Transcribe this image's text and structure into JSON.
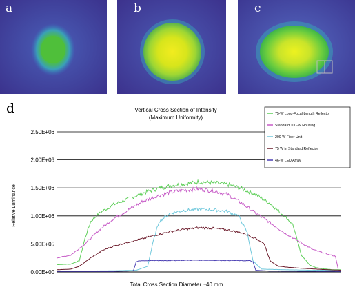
{
  "panels": [
    {
      "letter": "a"
    },
    {
      "letter": "b"
    },
    {
      "letter": "c"
    }
  ],
  "panel_d_letter": "d",
  "chart_data": {
    "type": "line",
    "title": "Vertical Cross Section of Intensity",
    "subtitle": "(Maximum Uniformity)",
    "xlabel": "Total Cross Section Diameter ~40 mm",
    "ylabel": "Relative Luminance",
    "ylim": [
      0,
      2500000
    ],
    "yticks": [
      0,
      500000,
      1000000,
      1500000,
      2000000,
      2500000
    ],
    "ytick_labels": [
      "0.00E+00",
      "5.00E+05",
      "1.00E+06",
      "1.50E+06",
      "2.00E+06",
      "2.50E+06"
    ],
    "xlim": [
      0,
      100
    ],
    "grid": "horizontal",
    "legend_position": "top-right",
    "series": [
      {
        "name": "75-W Long-Focal-Length Reflector",
        "color": "#5fcf5a",
        "points": [
          [
            0,
            130000
          ],
          [
            5,
            140000
          ],
          [
            8,
            200000
          ],
          [
            10,
            600000
          ],
          [
            12,
            900000
          ],
          [
            15,
            1050000
          ],
          [
            20,
            1200000
          ],
          [
            25,
            1300000
          ],
          [
            30,
            1400000
          ],
          [
            35,
            1480000
          ],
          [
            40,
            1540000
          ],
          [
            45,
            1570000
          ],
          [
            50,
            1610000
          ],
          [
            55,
            1590000
          ],
          [
            60,
            1560000
          ],
          [
            65,
            1490000
          ],
          [
            70,
            1380000
          ],
          [
            75,
            1220000
          ],
          [
            80,
            1000000
          ],
          [
            83,
            850000
          ],
          [
            86,
            300000
          ],
          [
            89,
            120000
          ],
          [
            91,
            80000
          ],
          [
            93,
            60000
          ],
          [
            95,
            50000
          ],
          [
            97,
            40000
          ],
          [
            100,
            40000
          ]
        ]
      },
      {
        "name": "Standard 100-W Housing",
        "color": "#c75bc7",
        "points": [
          [
            0,
            250000
          ],
          [
            5,
            300000
          ],
          [
            10,
            500000
          ],
          [
            15,
            750000
          ],
          [
            20,
            950000
          ],
          [
            25,
            1100000
          ],
          [
            30,
            1250000
          ],
          [
            35,
            1350000
          ],
          [
            40,
            1420000
          ],
          [
            45,
            1460000
          ],
          [
            50,
            1480000
          ],
          [
            55,
            1450000
          ],
          [
            60,
            1380000
          ],
          [
            65,
            1230000
          ],
          [
            70,
            1050000
          ],
          [
            75,
            880000
          ],
          [
            80,
            700000
          ],
          [
            85,
            550000
          ],
          [
            90,
            400000
          ],
          [
            95,
            320000
          ],
          [
            98,
            280000
          ],
          [
            99,
            30000
          ],
          [
            100,
            20000
          ]
        ]
      },
      {
        "name": "200-W Fiber Unit",
        "color": "#6fc8dc",
        "points": [
          [
            0,
            15000
          ],
          [
            18,
            20000
          ],
          [
            28,
            30000
          ],
          [
            32,
            100000
          ],
          [
            34,
            550000
          ],
          [
            36,
            900000
          ],
          [
            40,
            1050000
          ],
          [
            45,
            1100000
          ],
          [
            50,
            1120000
          ],
          [
            55,
            1110000
          ],
          [
            60,
            1080000
          ],
          [
            64,
            1000000
          ],
          [
            67,
            700000
          ],
          [
            69,
            200000
          ],
          [
            72,
            50000
          ],
          [
            80,
            40000
          ],
          [
            90,
            30000
          ],
          [
            100,
            30000
          ]
        ]
      },
      {
        "name": "75 W in Standard Reflector",
        "color": "#6b1a2a",
        "points": [
          [
            0,
            40000
          ],
          [
            5,
            50000
          ],
          [
            8,
            100000
          ],
          [
            12,
            250000
          ],
          [
            16,
            380000
          ],
          [
            20,
            460000
          ],
          [
            25,
            530000
          ],
          [
            30,
            590000
          ],
          [
            35,
            660000
          ],
          [
            40,
            720000
          ],
          [
            45,
            760000
          ],
          [
            50,
            790000
          ],
          [
            55,
            780000
          ],
          [
            60,
            750000
          ],
          [
            65,
            700000
          ],
          [
            70,
            600000
          ],
          [
            73,
            500000
          ],
          [
            75,
            200000
          ],
          [
            78,
            100000
          ],
          [
            82,
            80000
          ],
          [
            88,
            60000
          ],
          [
            95,
            40000
          ],
          [
            100,
            30000
          ]
        ]
      },
      {
        "name": "46-W LED Array",
        "color": "#4a3fb3",
        "points": [
          [
            0,
            10000
          ],
          [
            20,
            10000
          ],
          [
            27,
            20000
          ],
          [
            28,
            180000
          ],
          [
            29,
            200000
          ],
          [
            40,
            205000
          ],
          [
            50,
            210000
          ],
          [
            60,
            205000
          ],
          [
            68,
            200000
          ],
          [
            69,
            180000
          ],
          [
            70,
            30000
          ],
          [
            75,
            15000
          ],
          [
            100,
            10000
          ]
        ]
      }
    ]
  }
}
